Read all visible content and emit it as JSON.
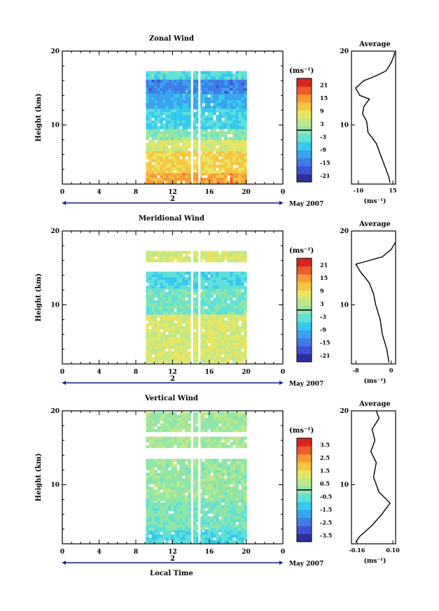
{
  "colors": {
    "scale": [
      "#2c2f9a",
      "#3d52d6",
      "#3f7de6",
      "#3aa2ee",
      "#36c9f0",
      "#5fe0d8",
      "#8fe6a8",
      "#bde889",
      "#e8e562",
      "#f6c542",
      "#f79a35",
      "#ef5a2e",
      "#d7261f"
    ],
    "axis": "#000000",
    "timeline": "#1a1a8c"
  },
  "chart_data": [
    {
      "type": "heatmap",
      "title": "Zonal Wind",
      "ylabel": "Height (km)",
      "ylim": [
        2,
        20
      ],
      "yticks": [
        "10",
        "20"
      ],
      "xlim": [
        0,
        24
      ],
      "xticks": [
        "0",
        "4",
        "8",
        "12",
        "16",
        "20",
        "0"
      ],
      "time_labels": [
        "2",
        "May 2007"
      ],
      "data_extent": {
        "x": [
          9.1,
          20
        ],
        "y": [
          2.2,
          17.3
        ]
      },
      "height_bands": [
        {
          "y": [
            2.2,
            3.6
          ],
          "value": 14
        },
        {
          "y": [
            3.6,
            6.5
          ],
          "value": 10
        },
        {
          "y": [
            6.5,
            8.0
          ],
          "value": 6
        },
        {
          "y": [
            8.0,
            9.5
          ],
          "value": 0
        },
        {
          "y": [
            9.5,
            12.5
          ],
          "value": -6
        },
        {
          "y": [
            12.5,
            14.5
          ],
          "value": -10
        },
        {
          "y": [
            14.5,
            16.5
          ],
          "value": -14
        },
        {
          "y": [
            16.5,
            17.3
          ],
          "value": -4
        }
      ],
      "colorbar": {
        "unit": "(ms⁻¹)",
        "ticks": [
          "21",
          "15",
          "9",
          "3",
          "-3",
          "-9",
          "-15",
          "-21"
        ],
        "range": [
          -24,
          24
        ]
      },
      "average": {
        "title": "Average",
        "unit": "(ms⁻¹)",
        "xticks": [
          "-10",
          "15"
        ],
        "xlim": [
          -15,
          17
        ],
        "yticks": [
          "10",
          "20"
        ],
        "ylim": [
          2,
          20
        ],
        "profile": [
          [
            13,
            2.2
          ],
          [
            12,
            3
          ],
          [
            9,
            4.5
          ],
          [
            6,
            6
          ],
          [
            3,
            7.5
          ],
          [
            -3,
            9
          ],
          [
            -4,
            10.5
          ],
          [
            -7,
            11.5
          ],
          [
            -6,
            12.5
          ],
          [
            -2,
            13.5
          ],
          [
            -9,
            14
          ],
          [
            -12,
            15
          ],
          [
            -6,
            16
          ],
          [
            1,
            16.5
          ],
          [
            10,
            17.3
          ],
          [
            14,
            18.5
          ],
          [
            16,
            19.5
          ],
          [
            17,
            20
          ]
        ]
      }
    },
    {
      "type": "heatmap",
      "title": "Meridional Wind",
      "ylabel": "Height (km)",
      "ylim": [
        2,
        20
      ],
      "yticks": [
        "10",
        "20"
      ],
      "xlim": [
        0,
        24
      ],
      "xticks": [
        "0",
        "4",
        "8",
        "12",
        "16",
        "20",
        "0"
      ],
      "time_labels": [
        "2",
        "May 2007"
      ],
      "data_extent": {
        "x": [
          9.1,
          20
        ],
        "y": [
          2.2,
          17.3
        ]
      },
      "height_bands": [
        {
          "y": [
            2.2,
            9.0
          ],
          "value": 6
        },
        {
          "y": [
            9.0,
            12.5
          ],
          "value": -2
        },
        {
          "y": [
            12.5,
            14.5
          ],
          "value": -5
        },
        {
          "y": [
            16.0,
            17.3
          ],
          "value": 6
        }
      ],
      "colorbar": {
        "unit": "(ms⁻¹)",
        "ticks": [
          "21",
          "15",
          "9",
          "3",
          "-3",
          "-9",
          "-15",
          "-21"
        ],
        "range": [
          -24,
          24
        ]
      },
      "average": {
        "title": "Average",
        "unit": "(ms⁻¹)",
        "xticks": [
          "-8",
          "0"
        ],
        "xlim": [
          -9,
          1
        ],
        "yticks": [
          "10",
          "20"
        ],
        "ylim": [
          2,
          20
        ],
        "profile": [
          [
            -0.5,
            2.2
          ],
          [
            -1,
            4
          ],
          [
            -2,
            6
          ],
          [
            -2.5,
            8
          ],
          [
            -3.5,
            10
          ],
          [
            -4,
            11.5
          ],
          [
            -5,
            13
          ],
          [
            -7,
            14.5
          ],
          [
            -8,
            15.5
          ],
          [
            -2,
            16.5
          ],
          [
            0,
            17.5
          ],
          [
            1,
            18.5
          ]
        ]
      }
    },
    {
      "type": "heatmap",
      "title": "Vertical Wind",
      "ylabel": "Height (km)",
      "ylim": [
        2,
        20
      ],
      "yticks": [
        "10",
        "20"
      ],
      "xlim": [
        0,
        24
      ],
      "xticks": [
        "0",
        "4",
        "8",
        "12",
        "16",
        "20",
        "0"
      ],
      "xlabel": "Local Time",
      "time_labels": [
        "2",
        "May 2007"
      ],
      "data_extent": {
        "x": [
          9.1,
          20
        ],
        "y": [
          2.2,
          19.8
        ]
      },
      "height_bands": [
        {
          "y": [
            2.2,
            4.0
          ],
          "value": -0.8
        },
        {
          "y": [
            4.0,
            8.0
          ],
          "value": -0.2
        },
        {
          "y": [
            8.0,
            13.5
          ],
          "value": 0.1
        },
        {
          "y": [
            15.0,
            16.5
          ],
          "value": 0.3
        },
        {
          "y": [
            17.5,
            19.8
          ],
          "value": 0.2
        }
      ],
      "colorbar": {
        "unit": "(ms⁻¹)",
        "ticks": [
          "3.5",
          "2.5",
          "1.5",
          "0.5",
          "-0.5",
          "-1.5",
          "-2.5",
          "-3.5"
        ],
        "range": [
          -4,
          4
        ]
      },
      "average": {
        "title": "Average",
        "unit": "(ms⁻¹)",
        "xticks": [
          "-0.16",
          "0.10"
        ],
        "xlim": [
          -0.2,
          0.12
        ],
        "yticks": [
          "10",
          "20"
        ],
        "ylim": [
          2,
          20
        ],
        "profile": [
          [
            -0.17,
            2.2
          ],
          [
            -0.14,
            3
          ],
          [
            -0.05,
            4.5
          ],
          [
            0.02,
            6
          ],
          [
            0.08,
            7.5
          ],
          [
            0.0,
            9
          ],
          [
            -0.04,
            11
          ],
          [
            -0.02,
            13
          ],
          [
            -0.06,
            14.5
          ],
          [
            -0.03,
            16
          ],
          [
            -0.05,
            17.5
          ],
          [
            0.0,
            19
          ],
          [
            -0.02,
            20
          ]
        ]
      }
    }
  ]
}
